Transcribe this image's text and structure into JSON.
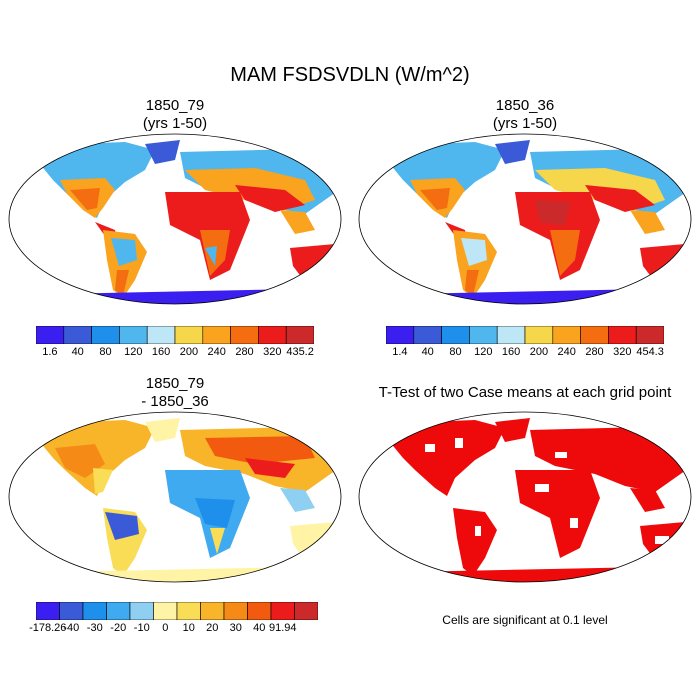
{
  "figure": {
    "title": "MAM FSDSVDLN (W/m^2)"
  },
  "panels": [
    {
      "id": "case1",
      "title_line1": "1850_79",
      "title_line2": "(yrs 1-50)",
      "colorbar": {
        "colors": [
          "#3a1ff0",
          "#3a5ad8",
          "#1f8fec",
          "#4fb6ee",
          "#bde6f6",
          "#f6d64a",
          "#f9a31f",
          "#f46d11",
          "#ec1c1c",
          "#cc2a2a"
        ],
        "labels": [
          "1.6",
          "40",
          "80",
          "120",
          "160",
          "200",
          "240",
          "280",
          "320",
          "435.2"
        ]
      }
    },
    {
      "id": "case2",
      "title_line1": "1850_36",
      "title_line2": "(yrs 1-50)",
      "colorbar": {
        "colors": [
          "#3a1ff0",
          "#3a5ad8",
          "#1f8fec",
          "#4fb6ee",
          "#bde6f6",
          "#f6d64a",
          "#f9a31f",
          "#f46d11",
          "#ec1c1c",
          "#cc2a2a"
        ],
        "labels": [
          "1.4",
          "40",
          "80",
          "120",
          "160",
          "200",
          "240",
          "280",
          "320",
          "454.3"
        ]
      }
    },
    {
      "id": "diff",
      "title_line1": "1850_79",
      "title_line2": "- 1850_36",
      "colorbar": {
        "colors": [
          "#3a1ff0",
          "#3a5ad8",
          "#1f8fec",
          "#3faaf0",
          "#8fd0f2",
          "#fff3a6",
          "#f9dd56",
          "#f9b52a",
          "#f58a17",
          "#f25a10",
          "#ec1c1c",
          "#cc2a2a"
        ],
        "labels": [
          "-178.26",
          "-40",
          "-30",
          "-20",
          "-10",
          "0",
          "10",
          "20",
          "30",
          "40",
          "91.94"
        ]
      }
    },
    {
      "id": "ttest",
      "title_line1": "T-Test of two Case means at each grid point",
      "note": "Cells are significant at 0.1 level",
      "sig_color": "#ee0a0a"
    }
  ]
}
